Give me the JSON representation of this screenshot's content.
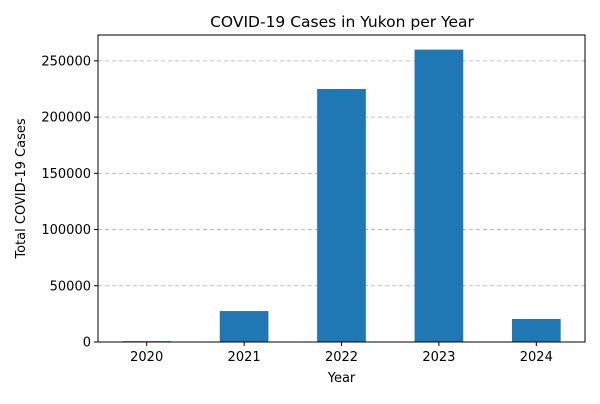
{
  "chart_data": {
    "type": "bar",
    "title": "COVID-19 Cases in Yukon per Year",
    "xlabel": "Year",
    "ylabel": "Total COVID-19 Cases",
    "categories": [
      "2020",
      "2021",
      "2022",
      "2023",
      "2024"
    ],
    "values": [
      700,
      27500,
      225000,
      260000,
      20500
    ],
    "ylim": [
      0,
      273000
    ],
    "yticks": [
      0,
      50000,
      100000,
      150000,
      200000,
      250000
    ],
    "grid": "y-dashed",
    "legend": "none",
    "bar_color": "#1f77b4",
    "grid_color": "#b0b0b0"
  }
}
